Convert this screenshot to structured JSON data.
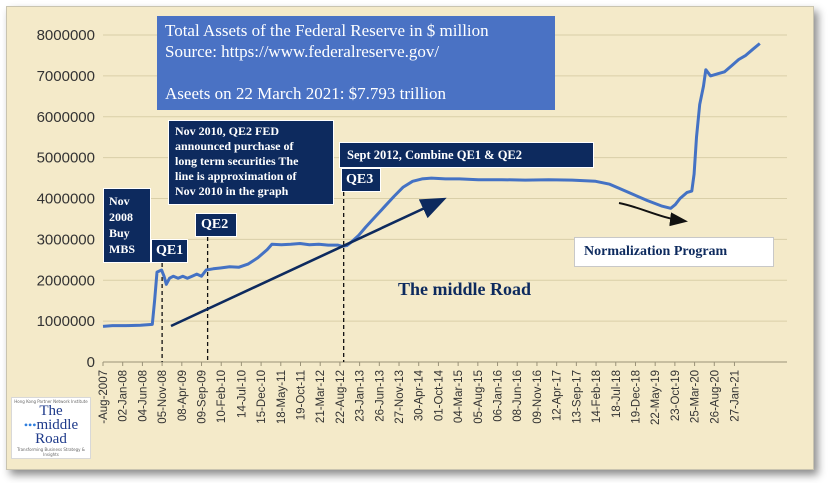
{
  "chart_data": {
    "type": "line",
    "title": "Total Assets of the Federal Reserve in $ million",
    "source": "Source: https://www.federalreserve.gov/",
    "current_note": "Aseets on 22 March 2021:  $7.793 trillion",
    "ylim": [
      0,
      8000000
    ],
    "yticks": [
      "0",
      "1000000",
      "2000000",
      "3000000",
      "4000000",
      "5000000",
      "6000000",
      "7000000",
      "8000000"
    ],
    "x_range": [
      0,
      14.58
    ],
    "x_tick_labels": [
      "-Aug-2007",
      "02-Jan-08",
      "04-Jun-08",
      "05-Nov-08",
      "08-Apr-09",
      "09-Sep-09",
      "10-Feb-10",
      "14-Jul-10",
      "15-Dec-10",
      "18-May-11",
      "19-Oct-11",
      "21-Mar-12",
      "22-Aug-12",
      "23-Jan-13",
      "26-Jun-13",
      "27-Nov-13",
      "30-Apr-14",
      "01-Oct-14",
      "04-Mar-15",
      "05-Aug-15",
      "06-Jan-16",
      "08-Jun-16",
      "09-Nov-16",
      "12-Apr-17",
      "13-Sep-17",
      "14-Feb-18",
      "18-Jul-18",
      "19-Dec-18",
      "22-May-19",
      "23-Oct-19",
      "25-Mar-20",
      "26-Aug-20",
      "27-Jan-21"
    ],
    "x_tick_positions": [
      0.0,
      0.42,
      0.84,
      1.26,
      1.68,
      2.1,
      2.52,
      2.95,
      3.37,
      3.79,
      4.21,
      4.63,
      5.05,
      5.47,
      5.89,
      6.31,
      6.73,
      7.15,
      7.57,
      7.99,
      8.41,
      8.83,
      9.25,
      9.67,
      10.09,
      10.51,
      10.93,
      11.35,
      11.77,
      12.19,
      12.61,
      13.03,
      13.46
    ],
    "series": [
      {
        "name": "Total Assets of the Federal Reserve",
        "color": "#4472c4",
        "points": [
          [
            0,
            870000
          ],
          [
            0.2,
            890000
          ],
          [
            0.5,
            890000
          ],
          [
            0.8,
            900000
          ],
          [
            1.05,
            920000
          ],
          [
            1.1,
            1500000
          ],
          [
            1.15,
            2200000
          ],
          [
            1.25,
            2250000
          ],
          [
            1.3,
            2100000
          ],
          [
            1.35,
            1900000
          ],
          [
            1.42,
            2050000
          ],
          [
            1.5,
            2100000
          ],
          [
            1.6,
            2050000
          ],
          [
            1.7,
            2100000
          ],
          [
            1.8,
            2050000
          ],
          [
            1.9,
            2100000
          ],
          [
            2.0,
            2150000
          ],
          [
            2.1,
            2100000
          ],
          [
            2.2,
            2250000
          ],
          [
            2.35,
            2280000
          ],
          [
            2.5,
            2300000
          ],
          [
            2.7,
            2330000
          ],
          [
            2.9,
            2320000
          ],
          [
            3.1,
            2400000
          ],
          [
            3.3,
            2550000
          ],
          [
            3.5,
            2750000
          ],
          [
            3.6,
            2880000
          ],
          [
            3.8,
            2870000
          ],
          [
            4.0,
            2880000
          ],
          [
            4.2,
            2900000
          ],
          [
            4.4,
            2870000
          ],
          [
            4.6,
            2880000
          ],
          [
            4.8,
            2860000
          ],
          [
            5.0,
            2860000
          ],
          [
            5.1,
            2830000
          ],
          [
            5.2,
            2850000
          ],
          [
            5.3,
            2940000
          ],
          [
            5.45,
            3100000
          ],
          [
            5.6,
            3300000
          ],
          [
            5.8,
            3550000
          ],
          [
            6.0,
            3800000
          ],
          [
            6.2,
            4050000
          ],
          [
            6.4,
            4280000
          ],
          [
            6.6,
            4420000
          ],
          [
            6.8,
            4480000
          ],
          [
            7.0,
            4500000
          ],
          [
            7.3,
            4480000
          ],
          [
            7.6,
            4480000
          ],
          [
            8.0,
            4460000
          ],
          [
            8.5,
            4460000
          ],
          [
            9.0,
            4450000
          ],
          [
            9.5,
            4460000
          ],
          [
            10.0,
            4450000
          ],
          [
            10.5,
            4420000
          ],
          [
            10.8,
            4350000
          ],
          [
            11.0,
            4250000
          ],
          [
            11.3,
            4100000
          ],
          [
            11.6,
            3950000
          ],
          [
            11.9,
            3820000
          ],
          [
            12.1,
            3760000
          ],
          [
            12.2,
            3850000
          ],
          [
            12.3,
            4000000
          ],
          [
            12.45,
            4150000
          ],
          [
            12.55,
            4180000
          ],
          [
            12.6,
            4600000
          ],
          [
            12.65,
            5500000
          ],
          [
            12.72,
            6300000
          ],
          [
            12.8,
            6750000
          ],
          [
            12.85,
            7150000
          ],
          [
            12.95,
            7000000
          ],
          [
            13.1,
            7050000
          ],
          [
            13.25,
            7100000
          ],
          [
            13.4,
            7250000
          ],
          [
            13.55,
            7400000
          ],
          [
            13.7,
            7500000
          ],
          [
            13.85,
            7650000
          ],
          [
            14.0,
            7793000
          ]
        ]
      }
    ],
    "events": [
      {
        "label": "QE1",
        "x": 1.26
      },
      {
        "label": "QE2",
        "x": 2.23
      },
      {
        "label": "QE3",
        "x": 5.13
      }
    ]
  },
  "annotations": {
    "nov2008_lines": [
      "Nov",
      "2008",
      "Buy",
      "MBS"
    ],
    "qe1": "QE1",
    "qe2": "QE2",
    "qe3": "QE3",
    "qe2_note_lines": [
      "Nov 2010,  QE2 FED",
      "announced purchase of",
      "long term securities The",
      "line is approximation of",
      "Nov 2010  in the graph"
    ],
    "sept2012": "Sept 2012, Combine QE1 & QE2",
    "middle_road": "The middle Road",
    "normalization": "Normalization Program"
  },
  "logo": {
    "small_text": "Hong Kong Partner Network Institute",
    "line1": "The",
    "line2": "middle",
    "line3": "Road",
    "tagline": "Transforming Business Strategy & Insights"
  }
}
